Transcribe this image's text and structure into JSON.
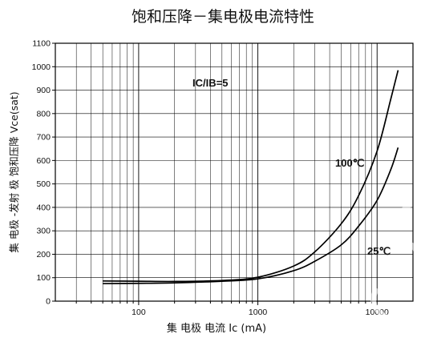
{
  "chart_data": {
    "type": "line",
    "title": "饱和压降－集电极电流特性",
    "xlabel": "集 电极 电流 Ic  (mA)",
    "ylabel": "集 电极 -发射 极  饱和压降 Vce(sat)",
    "xscale": "log",
    "xlim": [
      20,
      20000
    ],
    "ylim": [
      0,
      1100
    ],
    "grid": true,
    "x_ticks": [
      100,
      1000,
      10000
    ],
    "x_tick_labels": [
      "100",
      "1000",
      "10000"
    ],
    "y_ticks": [
      0,
      100,
      200,
      300,
      400,
      500,
      600,
      700,
      800,
      900,
      1000,
      1100
    ],
    "y_tick_labels": [
      "0",
      "100",
      "200",
      "300",
      "400",
      "500",
      "600",
      "700",
      "800",
      "900",
      "1000",
      "1100"
    ],
    "annotations": [
      {
        "text": "IC/IB=5"
      }
    ],
    "series": [
      {
        "name": "100℃",
        "x": [
          50,
          100,
          200,
          500,
          1000,
          2000,
          3000,
          5000,
          7000,
          10000,
          13000,
          15000
        ],
        "values": [
          86,
          85,
          84,
          88,
          102,
          150,
          210,
          330,
          450,
          640,
          860,
          985
        ]
      },
      {
        "name": "25℃",
        "x": [
          50,
          100,
          200,
          500,
          1000,
          2000,
          3000,
          5000,
          7000,
          10000,
          13000,
          15000
        ],
        "values": [
          75,
          76,
          78,
          85,
          95,
          130,
          170,
          240,
          320,
          430,
          560,
          655
        ]
      }
    ]
  }
}
